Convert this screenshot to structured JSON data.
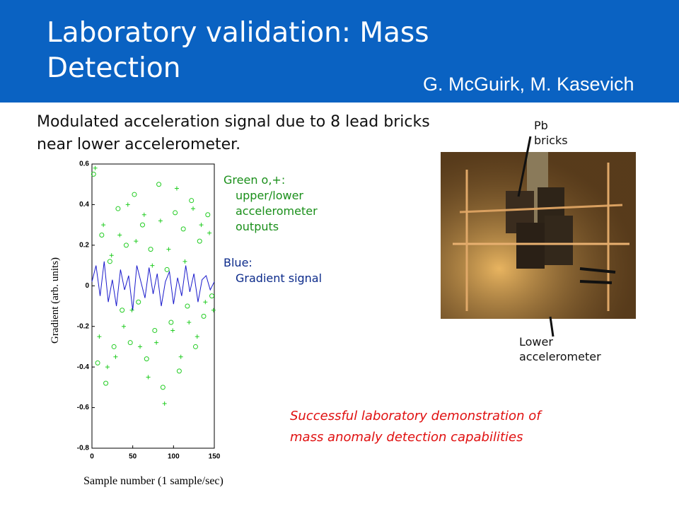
{
  "slide": {
    "title": "Laboratory validation: Mass Detection",
    "authors": "G. McGuirk, M. Kasevich",
    "subtitle": "Modulated acceleration signal due to 8 lead bricks near lower accelerometer.",
    "green_note": [
      "Green o,+:",
      "upper/lower",
      "accelerometer",
      "outputs"
    ],
    "blue_note": [
      "Blue:",
      "Gradient signal"
    ],
    "photo_labels": [
      [
        "Pb",
        "bricks"
      ],
      [
        "Lower",
        "accelerometer"
      ]
    ],
    "conclusion": [
      "Successful laboratory demonstration of",
      "mass anomaly detection capabilities"
    ]
  },
  "chart_data": {
    "type": "scatter",
    "xlabel": "Sample number (1 sample/sec)",
    "ylabel": "Gradient (arb. units)",
    "xlim": [
      0,
      150
    ],
    "ylim": [
      -0.8,
      0.6
    ],
    "xticks": [
      0,
      50,
      100,
      150
    ],
    "yticks": [
      0.6,
      0.4,
      0.2,
      0,
      -0.2,
      -0.4,
      -0.6,
      -0.8
    ],
    "series": [
      {
        "marker": "o",
        "color": "#22cc22",
        "x": [
          2,
          7,
          12,
          17,
          22,
          27,
          32,
          37,
          42,
          47,
          52,
          57,
          62,
          67,
          72,
          77,
          82,
          87,
          92,
          97,
          102,
          107,
          112,
          117,
          122,
          127,
          132,
          137,
          142,
          147
        ],
        "values": [
          0.55,
          -0.38,
          0.25,
          -0.48,
          0.12,
          -0.3,
          0.38,
          -0.12,
          0.2,
          -0.28,
          0.45,
          -0.08,
          0.3,
          -0.36,
          0.18,
          -0.22,
          0.5,
          -0.5,
          0.08,
          -0.18,
          0.36,
          -0.42,
          0.28,
          -0.1,
          0.42,
          -0.3,
          0.22,
          -0.15,
          0.35,
          -0.05
        ]
      },
      {
        "marker": "+",
        "color": "#22cc22",
        "x": [
          4,
          9,
          14,
          19,
          24,
          29,
          34,
          39,
          44,
          49,
          54,
          59,
          64,
          69,
          74,
          79,
          84,
          89,
          94,
          99,
          104,
          109,
          114,
          119,
          124,
          129,
          134,
          139,
          144,
          149
        ],
        "values": [
          0.58,
          -0.25,
          0.3,
          -0.4,
          0.15,
          -0.35,
          0.25,
          -0.2,
          0.4,
          -0.12,
          0.22,
          -0.3,
          0.35,
          -0.45,
          0.1,
          -0.28,
          0.32,
          -0.58,
          0.18,
          -0.22,
          0.48,
          -0.35,
          0.12,
          -0.18,
          0.38,
          -0.25,
          0.3,
          -0.08,
          0.26,
          -0.12
        ]
      },
      {
        "marker": "line",
        "color": "#1a1acc",
        "x": [
          0,
          5,
          10,
          15,
          20,
          25,
          30,
          35,
          40,
          45,
          50,
          55,
          60,
          65,
          70,
          75,
          80,
          85,
          90,
          95,
          100,
          105,
          110,
          115,
          120,
          125,
          130,
          135,
          140,
          145,
          150
        ],
        "values": [
          0.02,
          0.1,
          -0.05,
          0.12,
          -0.08,
          0.03,
          -0.1,
          0.08,
          -0.02,
          0.05,
          -0.12,
          0.1,
          0.02,
          -0.06,
          0.09,
          -0.04,
          0.06,
          -0.1,
          0.02,
          0.07,
          -0.09,
          0.04,
          -0.05,
          0.1,
          -0.03,
          0.06,
          -0.08,
          0.03,
          0.05,
          -0.02,
          0.02
        ]
      }
    ]
  }
}
